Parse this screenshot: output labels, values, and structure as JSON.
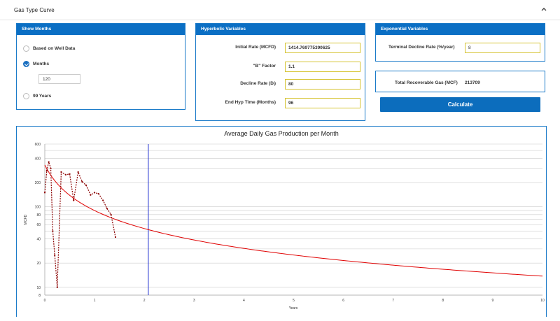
{
  "header": {
    "title": "Gas Type Curve",
    "collapse_icon": "chevron-up-icon"
  },
  "show_months": {
    "title": "Show Months",
    "options": [
      {
        "label": "Based on Well Data",
        "selected": false
      },
      {
        "label": "Months",
        "selected": true
      },
      {
        "label": "99 Years",
        "selected": false
      }
    ],
    "months_value": "120"
  },
  "hyperbolic": {
    "title": "Hyperbolic Variables",
    "fields": [
      {
        "label": "Initial Rate (MCFD)",
        "value": "1414.769775390625"
      },
      {
        "label": "\"B\" Factor",
        "value": "1.1"
      },
      {
        "label": "Decline Rate (Dᵢ)",
        "value": "80"
      },
      {
        "label": "End Hyp Time (Months)",
        "value": "96"
      }
    ]
  },
  "exponential": {
    "title": "Exponential Variables",
    "terminal_label": "Terminal Decline Rate (%/year)",
    "terminal_value": "8"
  },
  "trg": {
    "label": "Total Recoverable Gas (MCF)",
    "value": "213709"
  },
  "calculate_label": "Calculate",
  "chart_data": {
    "type": "line",
    "title": "Average Daily Gas Production per Month",
    "xlabel": "Years",
    "ylabel": "MCFD",
    "y_scale": "log",
    "xlim": [
      0,
      10
    ],
    "ylim": [
      8,
      600
    ],
    "x_ticks": [
      "0",
      "1",
      "2",
      "3",
      "4",
      "5",
      "6",
      "7",
      "8",
      "9",
      "10"
    ],
    "y_ticks": [
      "8",
      "10",
      "20",
      "40",
      "60",
      "80",
      "100",
      "200",
      "400",
      "600"
    ],
    "grid": true,
    "vertical_marker_x": 2.08,
    "series": [
      {
        "color": "#8b0000",
        "style": "dashed",
        "points": [
          [
            0.0,
            150
          ],
          [
            0.04,
            280
          ],
          [
            0.08,
            360
          ],
          [
            0.12,
            300
          ],
          [
            0.16,
            50
          ],
          [
            0.2,
            25
          ],
          [
            0.25,
            10
          ],
          [
            0.33,
            270
          ],
          [
            0.42,
            250
          ],
          [
            0.5,
            255
          ],
          [
            0.58,
            120
          ],
          [
            0.67,
            270
          ],
          [
            0.75,
            205
          ],
          [
            0.83,
            185
          ],
          [
            0.92,
            140
          ],
          [
            1.0,
            150
          ],
          [
            1.08,
            145
          ],
          [
            1.17,
            120
          ],
          [
            1.25,
            95
          ],
          [
            1.33,
            80
          ],
          [
            1.42,
            42
          ]
        ]
      },
      {
        "color": "#e00000",
        "style": "solid",
        "curve": {
          "qi": 330,
          "b": 1.1,
          "di": 2.9
        }
      }
    ]
  }
}
